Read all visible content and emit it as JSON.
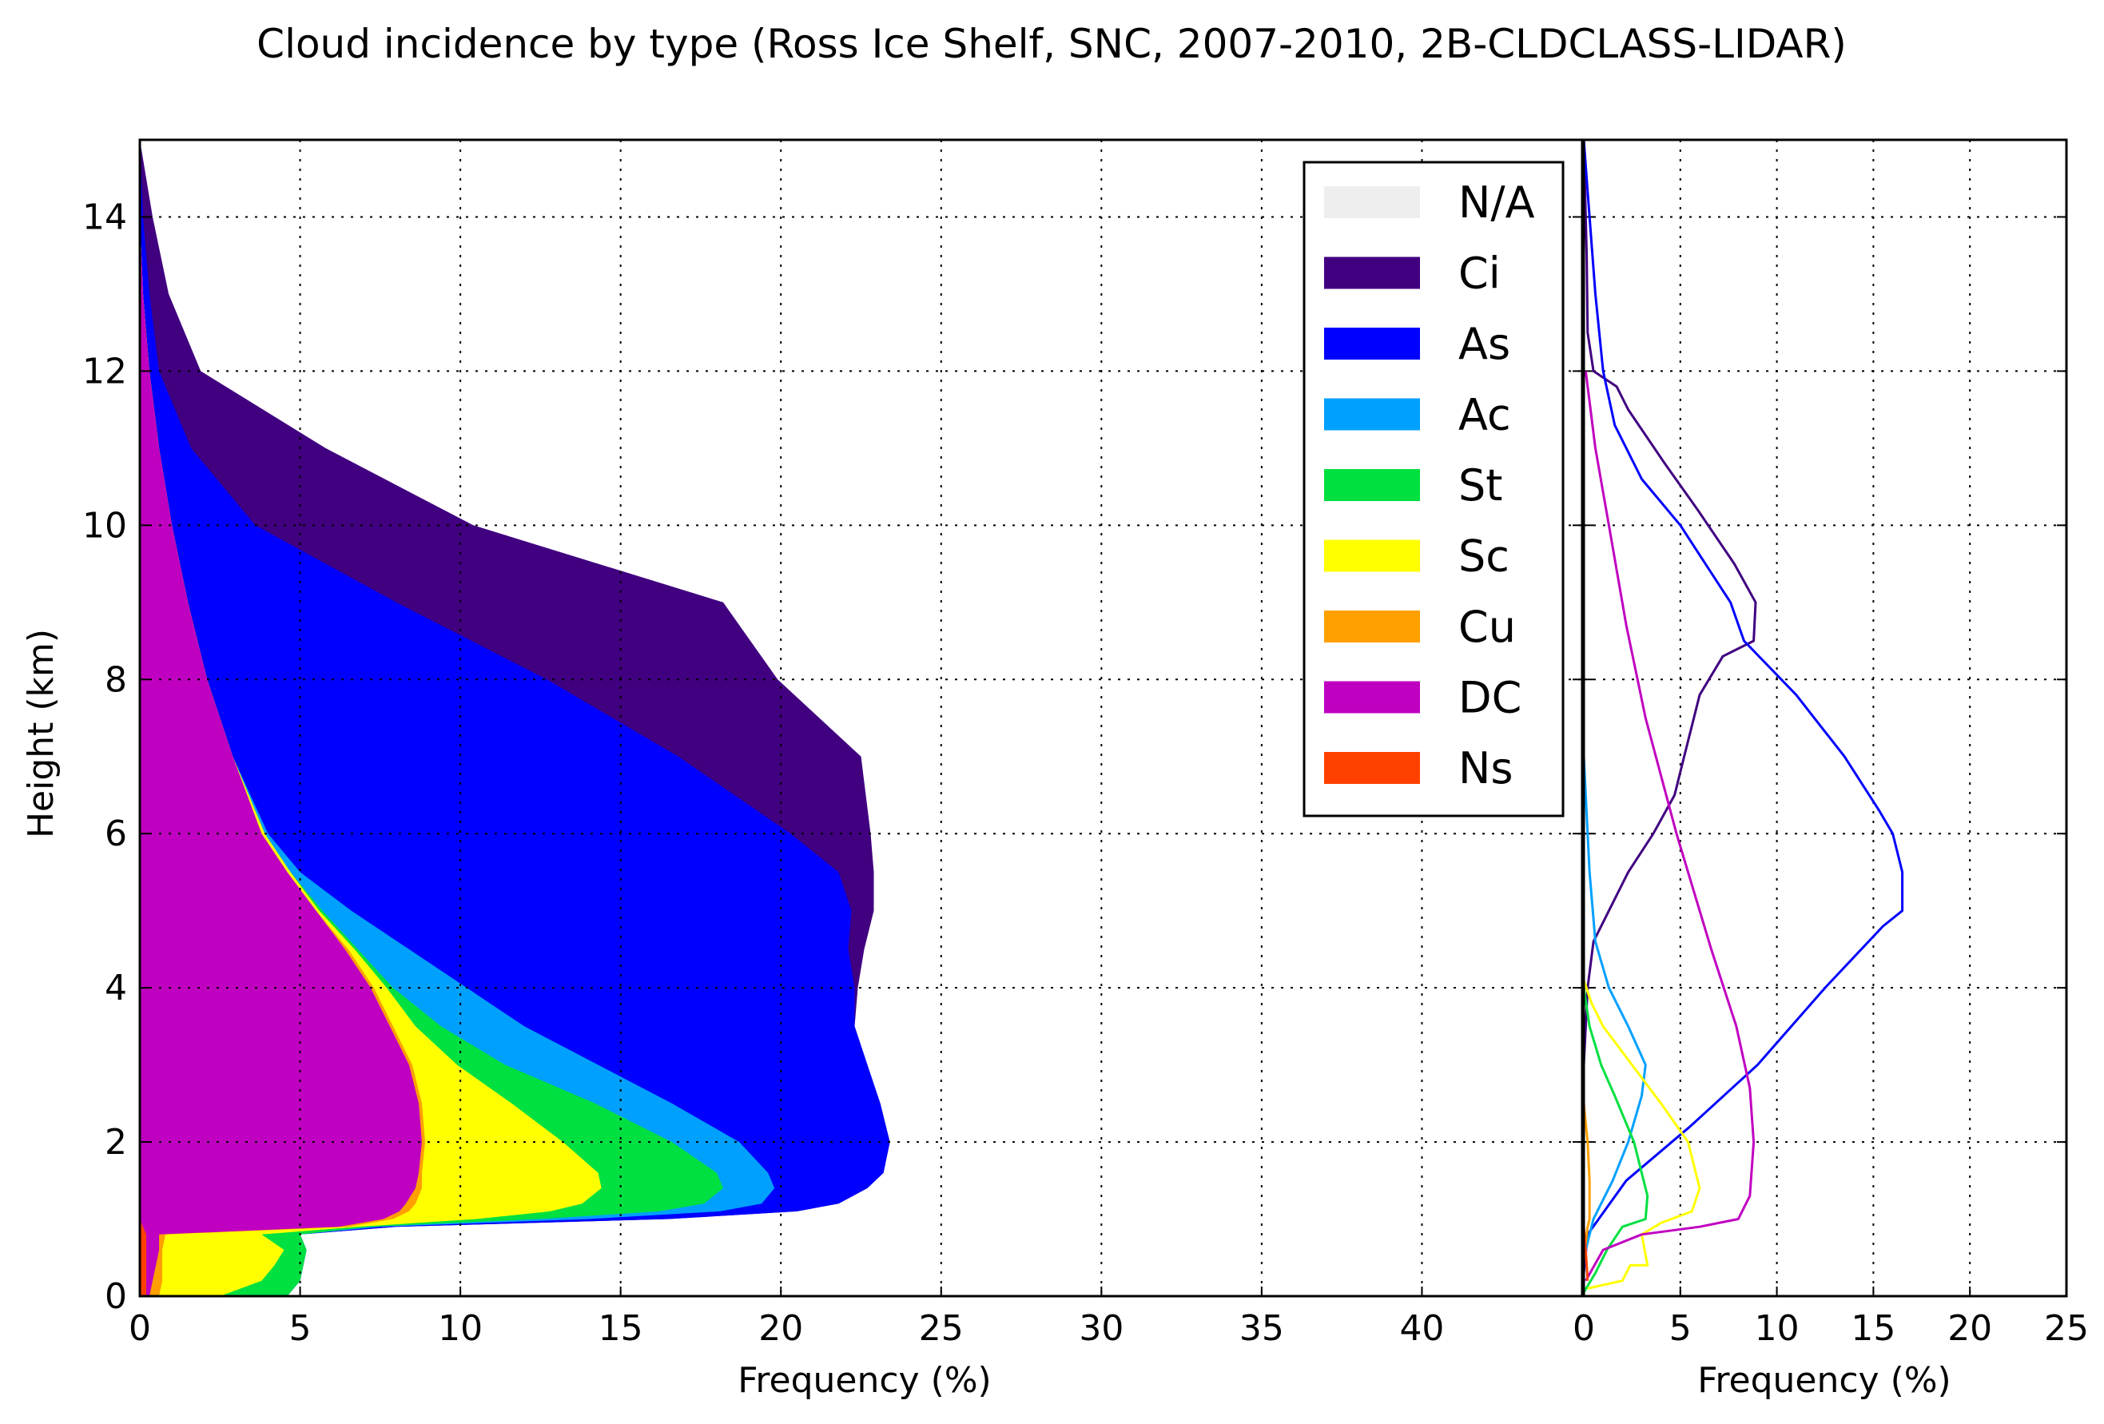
{
  "chart_data": [
    {
      "type": "area",
      "subtype": "stacked-horizontal-area",
      "title": "Cloud incidence by type (Ross Ice Shelf, SNC, 2007-2010, 2B-CLDCLASS-LIDAR)",
      "xlabel": "Frequency (%)",
      "ylabel": "Height (km)",
      "xlim": [
        0,
        45
      ],
      "ylim": [
        0,
        15
      ],
      "xticks": [
        "0",
        "5",
        "10",
        "15",
        "20",
        "25",
        "30",
        "35",
        "40"
      ],
      "yticks": [
        "0",
        "2",
        "4",
        "6",
        "8",
        "10",
        "12",
        "14"
      ],
      "grid": true,
      "stack_order_inner_to_outer": [
        "Ns",
        "DC",
        "Cu",
        "Sc",
        "St",
        "Ac",
        "As",
        "Ci",
        "N/A"
      ],
      "height_km": [
        0,
        0.2,
        0.4,
        0.6,
        0.8,
        0.9,
        1.0,
        1.1,
        1.2,
        1.4,
        1.6,
        2.0,
        2.5,
        3.0,
        3.5,
        4.0,
        4.5,
        5.0,
        5.5,
        6.0,
        7.0,
        8.0,
        9.0,
        10.0,
        11.0,
        12.0,
        13.0,
        14.0,
        15.0
      ],
      "cumulative": {
        "Ns": [
          0.2,
          0.2,
          0.2,
          0.2,
          0.2,
          0.1,
          0,
          0,
          0,
          0,
          0,
          0,
          0,
          0,
          0,
          0,
          0,
          0,
          0,
          0,
          0,
          0,
          0,
          0,
          0,
          0,
          0,
          0,
          0
        ],
        "DC": [
          0.3,
          0.4,
          0.5,
          0.6,
          0.6,
          6.2,
          7.6,
          8.1,
          8.3,
          8.6,
          8.7,
          8.8,
          8.7,
          8.4,
          7.8,
          7.2,
          6.4,
          5.5,
          4.6,
          3.8,
          2.9,
          2.1,
          1.5,
          1.0,
          0.6,
          0.3,
          0.1,
          0,
          0
        ],
        "Cu": [
          0.6,
          0.7,
          0.7,
          0.7,
          0.8,
          6.5,
          7.9,
          8.4,
          8.6,
          8.8,
          8.8,
          8.9,
          8.8,
          8.5,
          7.9,
          7.3,
          6.5,
          5.5,
          4.6,
          3.8,
          2.9,
          2.1,
          1.5,
          1.0,
          0.6,
          0.3,
          0.1,
          0,
          0
        ],
        "Sc": [
          2.5,
          3.8,
          4.2,
          4.5,
          3.8,
          6.8,
          10.5,
          12.8,
          13.8,
          14.4,
          14.3,
          13.2,
          11.6,
          9.9,
          8.6,
          7.7,
          6.7,
          5.6,
          4.7,
          3.9,
          2.9,
          2.1,
          1.5,
          1.0,
          0.6,
          0.3,
          0.1,
          0,
          0
        ],
        "St": [
          4.6,
          5.0,
          5.1,
          5.2,
          5.0,
          7.2,
          12.5,
          16.2,
          17.6,
          18.2,
          18.0,
          16.6,
          14.2,
          11.4,
          9.4,
          7.9,
          6.8,
          5.7,
          4.7,
          3.9,
          2.9,
          2.1,
          1.5,
          1.0,
          0.6,
          0.3,
          0.1,
          0,
          0
        ],
        "Ac": [
          4.6,
          5.0,
          5.1,
          5.2,
          5.0,
          7.5,
          14.0,
          18.1,
          19.4,
          19.8,
          19.6,
          18.7,
          16.6,
          14.3,
          12.0,
          10.2,
          8.4,
          6.6,
          5.0,
          4.0,
          2.9,
          2.1,
          1.5,
          1.0,
          0.6,
          0.3,
          0.1,
          0,
          0
        ],
        "As": [
          4.6,
          5.0,
          5.1,
          5.2,
          5.0,
          8.0,
          16.5,
          20.5,
          21.8,
          22.7,
          23.2,
          23.4,
          23.1,
          22.7,
          22.3,
          22.3,
          22.1,
          22.2,
          21.8,
          20.3,
          16.8,
          12.7,
          8.0,
          3.6,
          1.6,
          0.6,
          0.3,
          0.1,
          0
        ],
        "Ci": [
          4.6,
          5.0,
          5.1,
          5.2,
          5.0,
          8.0,
          16.5,
          20.5,
          21.8,
          22.7,
          23.2,
          23.4,
          23.1,
          22.7,
          22.3,
          22.4,
          22.6,
          22.9,
          22.9,
          22.8,
          22.5,
          19.9,
          18.2,
          10.4,
          5.8,
          1.9,
          0.9,
          0.4,
          0
        ]
      },
      "legend": {
        "placement": "upper-right",
        "items": [
          {
            "label": "N/A",
            "color": "#eeeeee"
          },
          {
            "label": "Ci",
            "color": "#400080"
          },
          {
            "label": "As",
            "color": "#0000ff"
          },
          {
            "label": "Ac",
            "color": "#00a0ff"
          },
          {
            "label": "St",
            "color": "#00e040"
          },
          {
            "label": "Sc",
            "color": "#ffff00"
          },
          {
            "label": "Cu",
            "color": "#ffa000"
          },
          {
            "label": "DC",
            "color": "#c000c0"
          },
          {
            "label": "Ns",
            "color": "#ff4000"
          }
        ]
      }
    },
    {
      "type": "line",
      "subtype": "vertical-profile",
      "xlabel": "Frequency (%)",
      "xlim": [
        0,
        25
      ],
      "ylim": [
        0,
        15
      ],
      "xticks": [
        "0",
        "5",
        "10",
        "15",
        "20",
        "25"
      ],
      "grid": true,
      "series": [
        {
          "name": "Ci",
          "color": "#400080",
          "x": [
            0,
            0,
            0,
            0,
            0.2,
            0.5,
            1.3,
            2.3,
            3.6,
            4.7,
            5.2,
            5.5,
            6.0,
            7.2,
            8.8,
            8.9,
            7.8,
            5.9,
            4.2,
            2.3,
            1.7,
            0.5,
            0.2,
            0.15,
            0
          ],
          "y": [
            0,
            1,
            2,
            3,
            4,
            4.6,
            5.0,
            5.5,
            6.0,
            6.5,
            7.0,
            7.3,
            7.8,
            8.3,
            8.5,
            9.0,
            9.5,
            10.2,
            10.8,
            11.5,
            11.8,
            12.0,
            12.5,
            13.5,
            15
          ]
        },
        {
          "name": "As",
          "color": "#0000ff",
          "x": [
            0,
            0.2,
            2.2,
            5.5,
            9.0,
            12.5,
            15.5,
            16.5,
            16.5,
            16.0,
            15.3,
            13.5,
            11.0,
            8.3,
            7.6,
            5.0,
            3.0,
            1.6,
            1.0,
            0.6,
            0.3,
            0
          ],
          "y": [
            0.3,
            0.8,
            1.5,
            2.2,
            3.0,
            4.0,
            4.8,
            5.0,
            5.5,
            6.0,
            6.3,
            7.0,
            7.8,
            8.5,
            9.0,
            10.0,
            10.6,
            11.3,
            12.0,
            13.0,
            14.0,
            15
          ]
        },
        {
          "name": "Ac",
          "color": "#00a0ff",
          "x": [
            0,
            0.5,
            1.5,
            2.3,
            3.0,
            3.2,
            2.3,
            1.3,
            0.6,
            0.3,
            0.1,
            0
          ],
          "y": [
            0.5,
            1.0,
            1.5,
            2.0,
            2.6,
            3.0,
            3.5,
            4.0,
            4.6,
            5.5,
            6.5,
            7.0
          ]
        },
        {
          "name": "St",
          "color": "#00e040",
          "x": [
            0,
            0.6,
            1.2,
            2.0,
            3.2,
            3.3,
            2.6,
            1.6,
            0.9,
            0.3,
            0
          ],
          "y": [
            0.05,
            0.3,
            0.6,
            0.9,
            1.0,
            1.3,
            2.0,
            2.6,
            3.0,
            3.5,
            4.0
          ]
        },
        {
          "name": "Sc",
          "color": "#ffff00",
          "x": [
            0.2,
            2.0,
            2.4,
            3.3,
            3.0,
            4.0,
            5.6,
            6.0,
            5.4,
            4.0,
            2.5,
            1.0,
            0.4,
            0
          ],
          "y": [
            0.1,
            0.2,
            0.4,
            0.4,
            0.8,
            0.95,
            1.1,
            1.4,
            2.0,
            2.5,
            3.0,
            3.5,
            3.8,
            4.1
          ]
        },
        {
          "name": "Cu",
          "color": "#ffa000",
          "x": [
            0,
            0.2,
            0.3,
            0.3,
            0.2,
            0
          ],
          "y": [
            0.5,
            0.9,
            1.0,
            1.5,
            2.0,
            2.5
          ]
        },
        {
          "name": "DC",
          "color": "#c000c0",
          "x": [
            0.1,
            1.0,
            3.0,
            6.0,
            8.0,
            8.6,
            8.8,
            8.6,
            7.9,
            6.6,
            4.8,
            3.2,
            2.2,
            1.3,
            0.6,
            0.1
          ],
          "y": [
            0.2,
            0.6,
            0.8,
            0.9,
            1.0,
            1.3,
            2.0,
            2.7,
            3.5,
            4.5,
            6.0,
            7.5,
            8.7,
            10.0,
            11.0,
            12.0
          ]
        },
        {
          "name": "Ns",
          "color": "#ff4000",
          "x": [
            0.2,
            0.1,
            0
          ],
          "y": [
            0.2,
            0.6,
            0.9
          ]
        }
      ]
    }
  ]
}
